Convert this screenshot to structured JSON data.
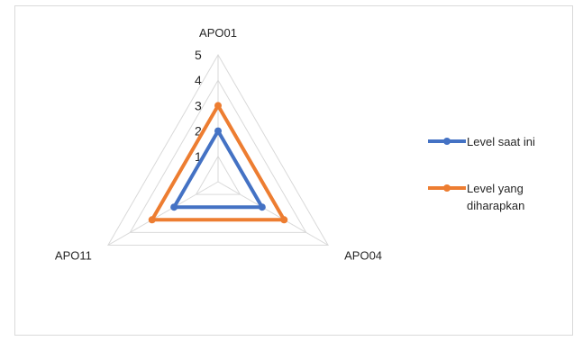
{
  "chart_data": {
    "type": "radar",
    "title": "",
    "axes": [
      "APO01",
      "APO04",
      "APO11"
    ],
    "ticks": [
      "1",
      "2",
      "3",
      "4",
      "5"
    ],
    "rlim": [
      0,
      5
    ],
    "grid": true,
    "legend_position": "right",
    "series": [
      {
        "name": "Level saat ini",
        "values": [
          2,
          2,
          2
        ],
        "color": "#4472c4"
      },
      {
        "name": "Level yang diharapkan",
        "values": [
          3,
          3,
          3
        ],
        "color": "#ed7d31"
      }
    ],
    "legend_lines": [
      [
        "Level saat ini"
      ],
      [
        "Level yang",
        "diharapkan"
      ]
    ]
  }
}
